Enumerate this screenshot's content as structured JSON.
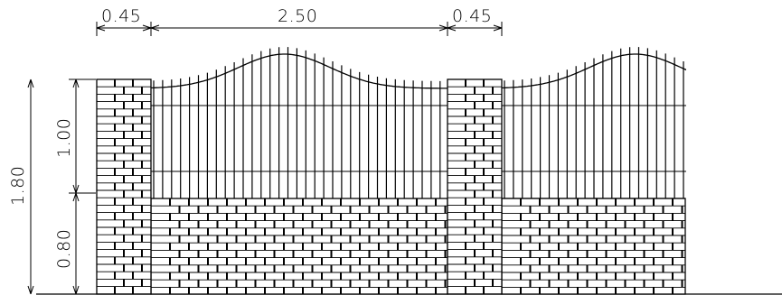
{
  "drawing": {
    "dimensions": {
      "pillar_width_left": "0.45",
      "panel_width": "2.50",
      "pillar_width_right": "0.45",
      "total_height": "1.80",
      "railing_height": "1.00",
      "wall_height": "0.80"
    },
    "colors": {
      "line": "#000000",
      "background": "#ffffff"
    }
  }
}
